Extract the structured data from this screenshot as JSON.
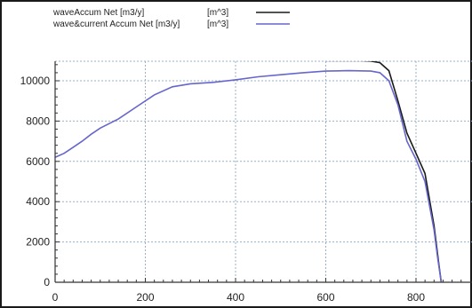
{
  "chart_data": {
    "type": "line",
    "title": "",
    "xlabel": "",
    "ylabel": "",
    "xlim": [
      0,
      900
    ],
    "ylim": [
      0,
      11000
    ],
    "x_ticks": [
      0,
      200,
      400,
      600,
      800
    ],
    "y_ticks": [
      0,
      2000,
      4000,
      6000,
      8000,
      10000
    ],
    "grid": true,
    "legend_position": "top-left",
    "legend": [
      {
        "label": "waveAccum Net  [m3/y]",
        "unit": "[m^3]"
      },
      {
        "label": "wave&current Accum Net  [m3/y]",
        "unit": "[m^3]"
      }
    ],
    "series": [
      {
        "name": "waveAccum Net  [m3/y]",
        "color": "#1a1a1a",
        "x": [
          600,
          640,
          680,
          700,
          720,
          740,
          760,
          780,
          800,
          820,
          840,
          850,
          856
        ],
        "y": [
          11000,
          11000,
          11000,
          10980,
          10900,
          10500,
          9000,
          7400,
          6400,
          5400,
          2800,
          1000,
          0
        ]
      },
      {
        "name": "wave&current Accum Net  [m3/y]",
        "color": "#6666cc",
        "x": [
          0,
          20,
          40,
          60,
          80,
          100,
          140,
          180,
          220,
          260,
          300,
          350,
          400,
          450,
          500,
          550,
          600,
          650,
          700,
          720,
          740,
          760,
          780,
          800,
          820,
          840,
          848,
          856
        ],
        "y": [
          6200,
          6400,
          6700,
          7000,
          7350,
          7650,
          8100,
          8700,
          9300,
          9700,
          9850,
          9920,
          10050,
          10200,
          10300,
          10400,
          10480,
          10500,
          10480,
          10400,
          10000,
          8800,
          7000,
          6100,
          5000,
          2600,
          1200,
          0
        ]
      }
    ]
  }
}
